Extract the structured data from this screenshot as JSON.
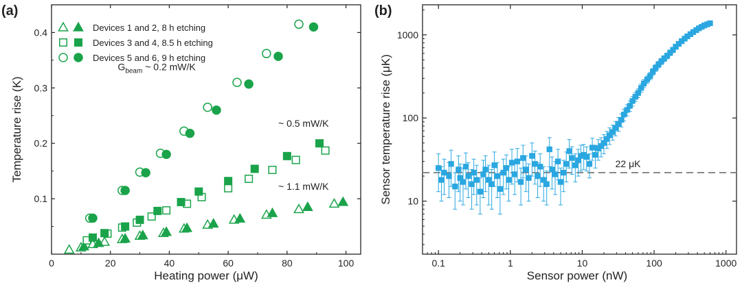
{
  "colors": {
    "green": "#1aa34a",
    "blue": "#2aa7e0",
    "axis": "#222222",
    "dashed": "#888888"
  },
  "chart_data": [
    {
      "panel": "(a)",
      "type": "scatter",
      "xlabel": "Heating power (μW)",
      "ylabel": "Temperature rise (K)",
      "xlim": [
        0,
        105
      ],
      "ylim": [
        0,
        0.45
      ],
      "xticks": [
        0,
        20,
        40,
        60,
        80,
        100
      ],
      "yticks": [
        0.1,
        0.2,
        0.3,
        0.4
      ],
      "grid": false,
      "legend_position": "top-left",
      "legend": [
        {
          "label": "Devices 1 and 2, 8 h etching",
          "marker": "triangle"
        },
        {
          "label": "Devices 3 and 4, 8.5 h etching",
          "marker": "square"
        },
        {
          "label": "Devices 5 and 6, 9 h etching",
          "marker": "circle"
        }
      ],
      "annotations": [
        {
          "text_main": "G",
          "text_sub": "beam",
          "text_rest": " ~ 0.2 mW/K",
          "at": [
            22.5,
            0.332
          ]
        },
        {
          "text": "~ 0.5 mW/K",
          "at": [
            77,
            0.23
          ]
        },
        {
          "text": "~ 1.1 mW/K",
          "at": [
            77,
            0.116
          ]
        }
      ],
      "series": [
        {
          "name": "Devices 1 and 2, 8 h etching",
          "marker": "triangle",
          "filled": false,
          "x": [
            6,
            10,
            14,
            18,
            24,
            30,
            38,
            45,
            53,
            62,
            73,
            84,
            96
          ],
          "y": [
            0.008,
            0.012,
            0.018,
            0.022,
            0.027,
            0.033,
            0.038,
            0.046,
            0.053,
            0.062,
            0.071,
            0.081,
            0.091
          ]
        },
        {
          "name": "Devices 1 and 2, 8 h etching",
          "marker": "triangle",
          "filled": true,
          "x": [
            11,
            16,
            25,
            31,
            39,
            46,
            55,
            64,
            75,
            87,
            99
          ],
          "y": [
            0.014,
            0.02,
            0.028,
            0.034,
            0.04,
            0.047,
            0.055,
            0.064,
            0.074,
            0.085,
            0.094
          ]
        },
        {
          "name": "Devices 3 and 4, 8.5 h etching",
          "marker": "square",
          "filled": false,
          "x": [
            12,
            19,
            24,
            29,
            34,
            39,
            46,
            51,
            60,
            67,
            75,
            83,
            93
          ],
          "y": [
            0.025,
            0.037,
            0.048,
            0.057,
            0.068,
            0.079,
            0.091,
            0.103,
            0.119,
            0.136,
            0.152,
            0.17,
            0.187
          ]
        },
        {
          "name": "Devices 3 and 4, 8.5 h etching",
          "marker": "square",
          "filled": true,
          "x": [
            14,
            18,
            25,
            30,
            36,
            44,
            50,
            60,
            69,
            80,
            91
          ],
          "y": [
            0.03,
            0.038,
            0.05,
            0.062,
            0.078,
            0.094,
            0.113,
            0.132,
            0.154,
            0.177,
            0.2
          ]
        },
        {
          "name": "Devices 5 and 6, 9 h etching",
          "marker": "circle",
          "filled": false,
          "x": [
            13,
            24,
            30,
            37,
            45,
            53,
            63,
            73,
            84
          ],
          "y": [
            0.065,
            0.115,
            0.148,
            0.182,
            0.222,
            0.265,
            0.31,
            0.362,
            0.415
          ]
        },
        {
          "name": "Devices 5 and 6, 9 h etching",
          "marker": "circle",
          "filled": true,
          "x": [
            14,
            25,
            32,
            39,
            47,
            56,
            67,
            77,
            89
          ],
          "y": [
            0.065,
            0.115,
            0.147,
            0.18,
            0.218,
            0.26,
            0.307,
            0.357,
            0.41
          ]
        }
      ]
    },
    {
      "panel": "(b)",
      "type": "scatter",
      "xlabel": "Sensor power (nW)",
      "ylabel": "Sensor temperature rise (μK)",
      "xscale": "log",
      "yscale": "log",
      "xlim": [
        0.06,
        1400
      ],
      "ylim": [
        2.3,
        2300
      ],
      "xticks": [
        0.1,
        1,
        10,
        100,
        1000
      ],
      "xtick_labels": [
        "0.1",
        "1",
        "10",
        "100",
        "1000"
      ],
      "yticks": [
        10,
        100,
        1000
      ],
      "ytick_labels": [
        "10",
        "100",
        "1000"
      ],
      "grid": false,
      "reference_line": {
        "y": 22,
        "style": "dashed",
        "label": "22 μK"
      },
      "series": [
        {
          "marker": "square",
          "filled": true,
          "x": [
            0.1,
            0.11,
            0.12,
            0.14,
            0.15,
            0.17,
            0.19,
            0.2,
            0.22,
            0.24,
            0.26,
            0.29,
            0.31,
            0.34,
            0.38,
            0.42,
            0.45,
            0.5,
            0.55,
            0.6,
            0.66,
            0.72,
            0.8,
            0.88,
            0.95,
            1.05,
            1.15,
            1.25,
            1.4,
            1.5,
            1.65,
            1.8,
            2.0,
            2.2,
            2.4,
            2.6,
            2.9,
            3.2,
            3.5,
            3.8,
            4.2,
            4.6,
            5.0,
            5.5,
            6.0,
            6.6,
            7.2,
            8.0,
            8.8,
            9.6,
            10.5,
            11.5,
            12.6,
            13.8,
            15.2,
            16.7,
            18.3,
            20,
            22,
            24,
            26.5,
            29,
            32,
            35,
            38,
            42,
            46,
            50,
            55,
            60,
            66,
            72,
            80,
            88,
            96,
            105,
            115,
            126,
            138,
            152,
            167,
            183,
            200,
            220,
            242,
            266,
            290,
            320,
            350,
            385,
            420,
            460,
            500,
            550,
            600
          ],
          "y": [
            25,
            18,
            22,
            20,
            28,
            15,
            24,
            19,
            17,
            26,
            20,
            16,
            22,
            18,
            13,
            21,
            24,
            18,
            16,
            27,
            20,
            14,
            22,
            25,
            18,
            29,
            21,
            30,
            17,
            33,
            24,
            19,
            35,
            28,
            20,
            26,
            18,
            16,
            42,
            24,
            21,
            30,
            17,
            22,
            28,
            40,
            33,
            27,
            31,
            35,
            36,
            34,
            28,
            44,
            36,
            43,
            46,
            50,
            56,
            62,
            68,
            76,
            85,
            95,
            110,
            125,
            140,
            160,
            180,
            200,
            230,
            260,
            290,
            320,
            360,
            400,
            440,
            480,
            520,
            560,
            610,
            660,
            720,
            780,
            840,
            900,
            960,
            1020,
            1080,
            1140,
            1200,
            1250,
            1300,
            1340,
            1380
          ],
          "err": [
            12,
            8,
            10,
            9,
            13,
            7,
            11,
            9,
            8,
            12,
            9,
            8,
            10,
            9,
            6,
            10,
            11,
            9,
            8,
            12,
            9,
            7,
            10,
            11,
            8,
            13,
            9,
            13,
            8,
            14,
            11,
            9,
            15,
            12,
            9,
            11,
            8,
            7,
            16,
            10,
            9,
            12,
            8,
            9,
            11,
            15,
            12,
            10,
            11,
            12,
            12,
            11,
            9,
            13,
            11,
            12,
            12,
            13,
            13,
            14,
            14,
            15,
            16,
            17,
            18,
            19,
            20,
            21,
            22,
            24,
            26,
            28,
            30,
            32,
            34,
            36,
            38,
            40,
            42,
            44,
            46,
            48,
            50,
            52,
            54,
            56,
            58,
            60,
            62,
            64,
            66,
            68,
            70,
            72,
            74
          ]
        }
      ]
    }
  ]
}
